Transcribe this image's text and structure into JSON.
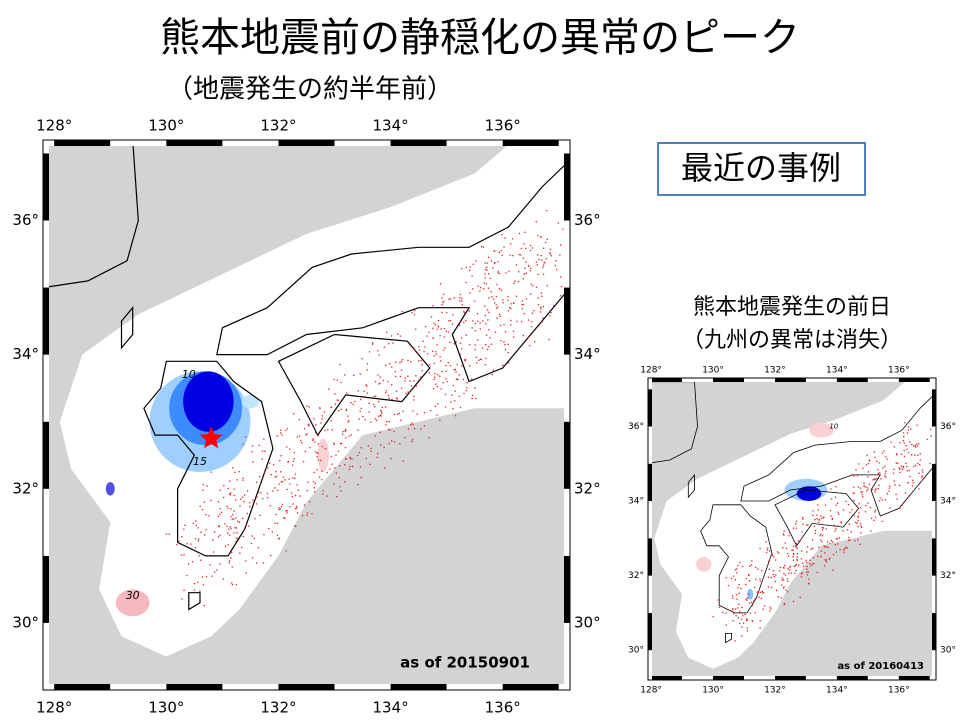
{
  "title": "熊本地震前の静穏化の異常のピーク",
  "subtitle": "（地震発生の約半年前）",
  "callout": "最近の事例",
  "maps": [
    {
      "lon_labels": [
        "128°",
        "130°",
        "132°",
        "134°",
        "136°"
      ],
      "lat_labels": [
        "36°",
        "34°",
        "32°",
        "30°"
      ],
      "contour_labels": [
        "10",
        "15",
        "30"
      ],
      "date_label": "as of 20150901"
    },
    {
      "caption": [
        "熊本地震発生の前日",
        "（九州の異常は消失）"
      ],
      "lon_labels": [
        "128°",
        "130°",
        "132°",
        "134°",
        "136°"
      ],
      "lat_labels": [
        "36°",
        "34°",
        "32°",
        "30°"
      ],
      "contour_labels": [
        "10"
      ],
      "date_label": "as of 20160413"
    }
  ]
}
